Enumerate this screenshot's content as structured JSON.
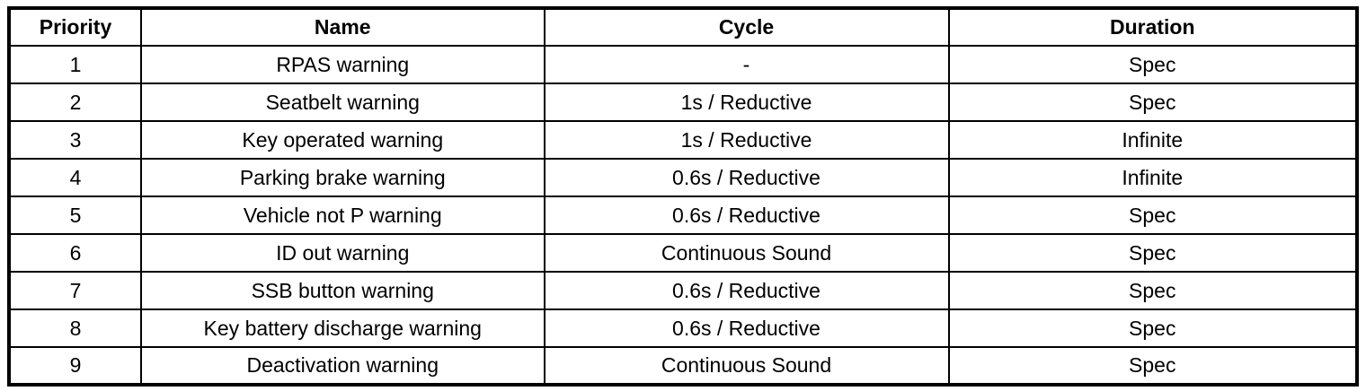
{
  "table": {
    "columns": [
      {
        "key": "priority",
        "label": "Priority"
      },
      {
        "key": "name",
        "label": "Name"
      },
      {
        "key": "cycle",
        "label": "Cycle"
      },
      {
        "key": "duration",
        "label": "Duration"
      }
    ],
    "rows": [
      {
        "priority": "1",
        "name": "RPAS warning",
        "cycle": "-",
        "duration": "Spec"
      },
      {
        "priority": "2",
        "name": "Seatbelt warning",
        "cycle": "1s / Reductive",
        "duration": "Spec"
      },
      {
        "priority": "3",
        "name": "Key operated warning",
        "cycle": "1s / Reductive",
        "duration": "Infinite"
      },
      {
        "priority": "4",
        "name": "Parking brake warning",
        "cycle": "0.6s / Reductive",
        "duration": "Infinite"
      },
      {
        "priority": "5",
        "name": "Vehicle not P warning",
        "cycle": "0.6s / Reductive",
        "duration": "Spec"
      },
      {
        "priority": "6",
        "name": "ID out warning",
        "cycle": "Continuous Sound",
        "duration": "Spec"
      },
      {
        "priority": "7",
        "name": "SSB button warning",
        "cycle": "0.6s / Reductive",
        "duration": "Spec"
      },
      {
        "priority": "8",
        "name": "Key battery discharge warning",
        "cycle": "0.6s / Reductive",
        "duration": "Spec"
      },
      {
        "priority": "9",
        "name": "Deactivation warning",
        "cycle": "Continuous Sound",
        "duration": "Spec"
      }
    ]
  },
  "colors": {
    "border": "#000000",
    "text": "#000000",
    "background": "#ffffff"
  }
}
